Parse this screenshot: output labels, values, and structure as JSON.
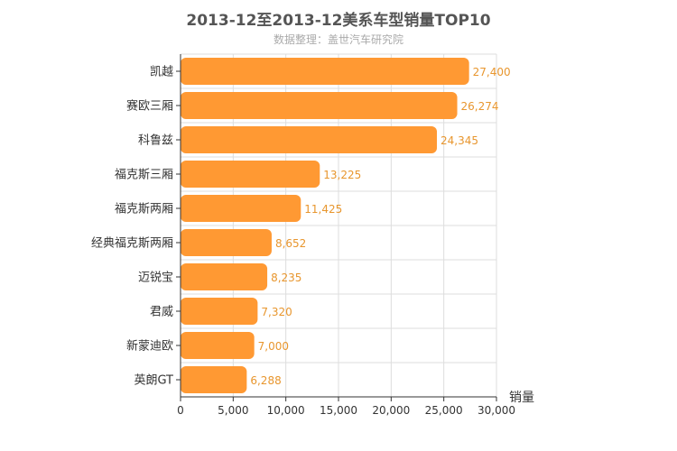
{
  "chart_data": {
    "type": "bar",
    "orientation": "horizontal",
    "title": "2013-12至2013-12美系车型销量TOP10",
    "subtitle": "数据整理：盖世汽车研究院",
    "categories": [
      "凯越",
      "赛欧三厢",
      "科鲁兹",
      "福克斯三厢",
      "福克斯两厢",
      "经典福克斯两厢",
      "迈锐宝",
      "君威",
      "新蒙迪欧",
      "英朗GT"
    ],
    "values": [
      27400,
      26274,
      24345,
      13225,
      11425,
      8652,
      8235,
      7320,
      7000,
      6288
    ],
    "value_labels": [
      "27,400",
      "26,274",
      "24,345",
      "13,225",
      "11,425",
      "8,652",
      "8,235",
      "7,320",
      "7,000",
      "6,288"
    ],
    "xlabel": "销量",
    "ylabel": "",
    "xlim": [
      0,
      30000
    ],
    "xticks": [
      0,
      5000,
      10000,
      15000,
      20000,
      25000,
      30000
    ],
    "xtick_labels": [
      "0",
      "5,000",
      "10,000",
      "15,000",
      "20,000",
      "25,000",
      "30,000"
    ],
    "grid": true,
    "colors": {
      "bar": "#FF9933",
      "bar_label": "#E8962E",
      "grid": "#dddddd",
      "axis": "#333333",
      "text": "#333333"
    }
  }
}
